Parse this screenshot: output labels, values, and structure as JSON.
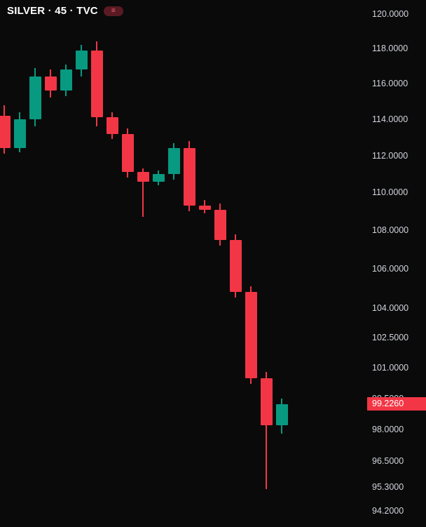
{
  "header": {
    "title": "SILVER · 45 · TVC",
    "symbol": "SILVER",
    "interval": "45",
    "exchange": "TVC",
    "badge_glyph": "≡"
  },
  "colors": {
    "background": "#0a0a0a",
    "up": "#089981",
    "down": "#f23645",
    "axis_text": "#d1d4dc",
    "price_label_bg": "#f23645",
    "price_label_text": "#ffffff",
    "badge_bg": "#5a1a24",
    "badge_fg": "#f56475"
  },
  "price_scale": {
    "decimals": 4,
    "labels": [
      120,
      118,
      116,
      114,
      112,
      110,
      108,
      106,
      104,
      102.5,
      101,
      99.5,
      98,
      96.5,
      95.3,
      94.2
    ]
  },
  "last_price": {
    "value": 99.226,
    "display": "99.2260"
  },
  "chart_data": {
    "type": "candlestick",
    "title": "SILVER · 45 · TVC",
    "symbol": "SILVER",
    "interval": "45",
    "exchange": "TVC",
    "scale": "logarithmic",
    "grid": false,
    "legend_position": "none",
    "y_axis_range_approx": [
      94.0,
      120.6
    ],
    "candles": [
      {
        "o": 114.2,
        "h": 114.8,
        "l": 112.1,
        "c": 112.4
      },
      {
        "o": 112.4,
        "h": 114.4,
        "l": 112.2,
        "c": 114.0
      },
      {
        "o": 114.0,
        "h": 116.9,
        "l": 113.6,
        "c": 116.4
      },
      {
        "o": 116.4,
        "h": 116.8,
        "l": 115.2,
        "c": 115.6
      },
      {
        "o": 115.6,
        "h": 117.1,
        "l": 115.3,
        "c": 116.8
      },
      {
        "o": 116.8,
        "h": 118.2,
        "l": 116.4,
        "c": 117.9
      },
      {
        "o": 117.9,
        "h": 118.4,
        "l": 113.6,
        "c": 114.1
      },
      {
        "o": 114.1,
        "h": 114.4,
        "l": 112.9,
        "c": 113.2
      },
      {
        "o": 113.2,
        "h": 113.5,
        "l": 110.8,
        "c": 111.1
      },
      {
        "o": 111.1,
        "h": 111.3,
        "l": 108.7,
        "c": 110.6
      },
      {
        "o": 110.6,
        "h": 111.2,
        "l": 110.4,
        "c": 111.0
      },
      {
        "o": 111.0,
        "h": 112.7,
        "l": 110.7,
        "c": 112.4
      },
      {
        "o": 112.4,
        "h": 112.8,
        "l": 109.0,
        "c": 109.3
      },
      {
        "o": 109.3,
        "h": 109.6,
        "l": 108.9,
        "c": 109.1
      },
      {
        "o": 109.1,
        "h": 109.4,
        "l": 107.2,
        "c": 107.5
      },
      {
        "o": 107.5,
        "h": 107.8,
        "l": 104.5,
        "c": 104.8
      },
      {
        "o": 104.8,
        "h": 105.1,
        "l": 100.2,
        "c": 100.5
      },
      {
        "o": 100.5,
        "h": 100.8,
        "l": 95.2,
        "c": 98.2
      },
      {
        "o": 98.2,
        "h": 99.5,
        "l": 97.8,
        "c": 99.226
      }
    ]
  }
}
